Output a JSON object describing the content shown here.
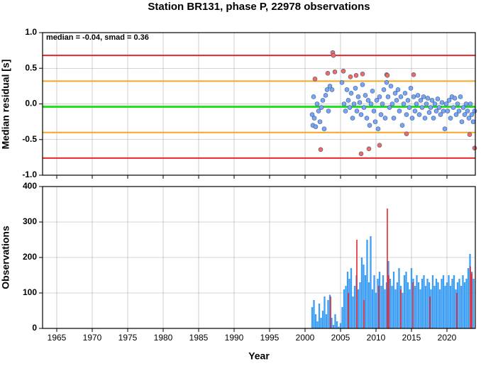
{
  "chart_data": [
    {
      "type": "scatter",
      "title": "Station BR131, phase P, 22978 observations",
      "ylabel": "Median residual [s]",
      "annotation": "median = -0.04, smad = 0.36",
      "xlim": [
        1963,
        2024
      ],
      "xticks": [
        1965,
        1970,
        1975,
        1980,
        1985,
        1990,
        1995,
        2000,
        2005,
        2010,
        2015,
        2020
      ],
      "ylim": [
        -1,
        1
      ],
      "yticks": [
        {
          "value": 1,
          "label": "1.0"
        },
        {
          "value": 0.5,
          "label": "0.5"
        },
        {
          "value": 0,
          "label": "0.0"
        },
        {
          "value": -0.5,
          "label": "-0.5"
        },
        {
          "value": -1,
          "label": "-1.0"
        }
      ],
      "grid": true,
      "reference_lines": [
        {
          "value": 0.68,
          "color": "#e8262b"
        },
        {
          "value": 0.32,
          "color": "#f5a623"
        },
        {
          "value": -0.04,
          "color": "#22e022"
        },
        {
          "value": -0.4,
          "color": "#f5a623"
        },
        {
          "value": -0.76,
          "color": "#e8262b"
        }
      ],
      "series": [
        {
          "color": "#7aa6f0",
          "x": [
            2001.0,
            2001.1,
            2001.2,
            2001.3,
            2001.5,
            2001.7,
            2001.9,
            2002.1,
            2002.3,
            2002.5,
            2002.7,
            2002.9,
            2003.1,
            2003.3,
            2003.5,
            2003.8,
            2005.2,
            2005.5,
            2005.7,
            2005.9,
            2006.1,
            2006.3,
            2006.5,
            2006.7,
            2006.9,
            2007.1,
            2007.3,
            2007.5,
            2007.7,
            2007.9,
            2008.1,
            2008.3,
            2008.5,
            2008.7,
            2008.9,
            2009.1,
            2009.3,
            2009.5,
            2009.7,
            2009.9,
            2010.1,
            2010.3,
            2010.5,
            2010.7,
            2010.9,
            2011.1,
            2011.3,
            2011.5,
            2011.7,
            2011.9,
            2012.1,
            2012.3,
            2012.5,
            2012.7,
            2012.9,
            2013.1,
            2013.3,
            2013.5,
            2013.7,
            2013.9,
            2014.1,
            2014.3,
            2014.5,
            2014.7,
            2014.9,
            2015.1,
            2015.3,
            2015.5,
            2015.7,
            2015.9,
            2016.1,
            2016.3,
            2016.5,
            2016.7,
            2016.9,
            2017.1,
            2017.3,
            2017.5,
            2017.7,
            2017.9,
            2018.1,
            2018.3,
            2018.5,
            2018.7,
            2018.9,
            2019.1,
            2019.3,
            2019.5,
            2019.7,
            2019.9,
            2020.1,
            2020.3,
            2020.5,
            2020.7,
            2020.9,
            2021.1,
            2021.3,
            2021.5,
            2021.7,
            2021.9,
            2022.1,
            2022.3,
            2022.5,
            2022.7,
            2022.9,
            2023.1,
            2023.3,
            2023.5,
            2023.7,
            2023.9
          ],
          "values": [
            -0.15,
            -0.3,
            0.1,
            -0.2,
            -0.32,
            0.0,
            -0.1,
            -0.25,
            -0.05,
            0.05,
            -0.35,
            0.12,
            0.2,
            -0.1,
            0.25,
            0.2,
            0.3,
            0.0,
            -0.1,
            0.2,
            0.05,
            -0.05,
            0.15,
            -0.2,
            0.0,
            0.22,
            -0.1,
            0.1,
            0.02,
            -0.15,
            0.27,
            -0.05,
            0.12,
            -0.2,
            0.05,
            -0.3,
            0.0,
            0.18,
            -0.1,
            -0.25,
            0.05,
            -0.35,
            0.1,
            -0.15,
            0.0,
            0.2,
            -0.2,
            0.3,
            0.1,
            -0.05,
            0.25,
            0.0,
            -0.2,
            0.15,
            0.05,
            0.2,
            -0.1,
            0.1,
            -0.3,
            0.0,
            0.15,
            -0.15,
            0.05,
            -0.05,
            0.22,
            -0.2,
            0.1,
            -0.1,
            0.0,
            0.12,
            -0.15,
            0.05,
            -0.05,
            0.1,
            -0.2,
            0.0,
            0.08,
            -0.12,
            -0.05,
            0.05,
            -0.2,
            0.0,
            -0.1,
            0.07,
            -0.05,
            -0.15,
            0.02,
            -0.1,
            -0.35,
            0.0,
            -0.1,
            0.05,
            -0.2,
            0.1,
            -0.05,
            0.08,
            -0.15,
            0.0,
            -0.1,
            0.1,
            -0.25,
            -0.05,
            -0.15,
            0.0,
            -0.1,
            -0.2,
            0.0,
            -0.15,
            -0.25,
            -0.1
          ]
        },
        {
          "color": "#f26b5b",
          "x": [
            2001.4,
            2002.2,
            2003.2,
            2003.9,
            2004.0,
            2004.2,
            2005.4,
            2006.4,
            2007.2,
            2007.9,
            2008.1,
            2009.0,
            2010.5,
            2011.5,
            2011.6,
            2014.3,
            2015.3,
            2023.2,
            2023.9
          ],
          "values": [
            0.35,
            -0.64,
            0.43,
            0.72,
            0.68,
            0.45,
            0.46,
            0.38,
            0.4,
            -0.7,
            0.42,
            -0.63,
            -0.58,
            0.41,
            0.4,
            -0.42,
            0.41,
            -0.43,
            -0.62
          ]
        }
      ]
    },
    {
      "type": "bar",
      "xlabel": "Year",
      "ylabel": "Observations",
      "xlim": [
        1963,
        2024
      ],
      "xticks": [
        1965,
        1970,
        1975,
        1980,
        1985,
        1990,
        1995,
        2000,
        2005,
        2010,
        2015,
        2020
      ],
      "ylim": [
        0,
        400
      ],
      "yticks": [
        0,
        100,
        200,
        300,
        400
      ],
      "grid": true,
      "series": [
        {
          "color": "#3d9ef5",
          "x": [
            2001,
            2001.25,
            2001.5,
            2001.75,
            2002,
            2002.25,
            2002.5,
            2002.75,
            2003,
            2003.25,
            2003.5,
            2003.75,
            2004,
            2004.25,
            2004.5,
            2004.75,
            2005,
            2005.25,
            2005.5,
            2005.75,
            2006,
            2006.25,
            2006.5,
            2006.75,
            2007,
            2007.25,
            2007.5,
            2007.75,
            2008,
            2008.25,
            2008.5,
            2008.75,
            2009,
            2009.25,
            2009.5,
            2009.75,
            2010,
            2010.25,
            2010.5,
            2010.75,
            2011,
            2011.25,
            2011.5,
            2011.75,
            2012,
            2012.25,
            2012.5,
            2012.75,
            2013,
            2013.25,
            2013.5,
            2013.75,
            2014,
            2014.25,
            2014.5,
            2014.75,
            2015,
            2015.25,
            2015.5,
            2015.75,
            2016,
            2016.25,
            2016.5,
            2016.75,
            2017,
            2017.25,
            2017.5,
            2017.75,
            2018,
            2018.25,
            2018.5,
            2018.75,
            2019,
            2019.25,
            2019.5,
            2019.75,
            2020,
            2020.25,
            2020.5,
            2020.75,
            2021,
            2021.25,
            2021.5,
            2021.75,
            2022,
            2022.25,
            2022.5,
            2022.75,
            2023,
            2023.25,
            2023.5,
            2023.75
          ],
          "values": [
            60,
            80,
            40,
            20,
            70,
            30,
            50,
            90,
            40,
            80,
            95,
            30,
            10,
            40,
            20,
            5,
            15,
            60,
            110,
            120,
            160,
            140,
            170,
            90,
            120,
            150,
            110,
            130,
            200,
            180,
            150,
            250,
            130,
            260,
            110,
            150,
            100,
            140,
            160,
            120,
            150,
            110,
            130,
            190,
            140,
            120,
            160,
            110,
            130,
            170,
            120,
            100,
            150,
            160,
            130,
            110,
            170,
            140,
            120,
            150,
            130,
            110,
            140,
            150,
            120,
            140,
            130,
            110,
            150,
            120,
            140,
            130,
            110,
            140,
            150,
            120,
            130,
            150,
            120,
            140,
            150,
            110,
            130,
            140,
            120,
            150,
            130,
            140,
            170,
            210,
            160,
            140
          ]
        },
        {
          "color": "#e8262b",
          "x": [
            2003.6,
            2006.1,
            2007.3,
            2008.3,
            2010.4,
            2011.6,
            2011.8,
            2013.5,
            2015.2,
            2017.6,
            2021.4,
            2023.3,
            2023.5
          ],
          "values": [
            90,
            100,
            250,
            80,
            120,
            338,
            150,
            110,
            130,
            90,
            100,
            175,
            155
          ]
        }
      ]
    }
  ]
}
